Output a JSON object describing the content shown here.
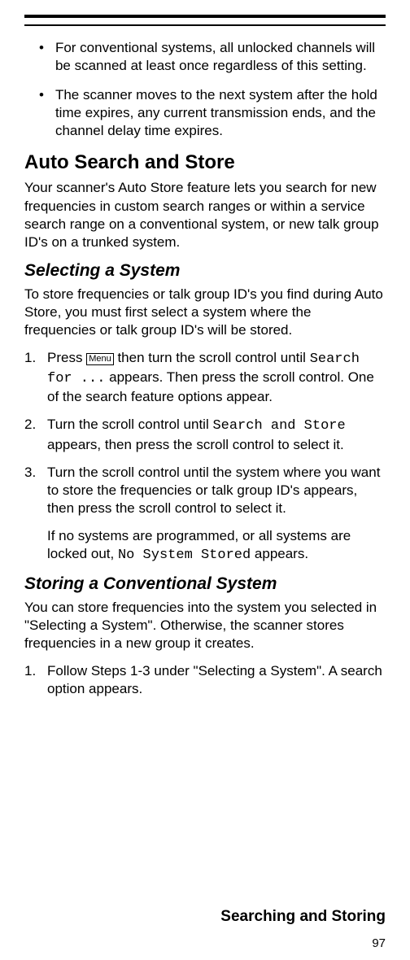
{
  "bullets": [
    "For conventional systems, all unlocked channels will be scanned at least once regardless of this setting.",
    "The scanner moves to the next system after the hold time expires, any current transmission ends, and the channel delay time expires."
  ],
  "section1": {
    "title": "Auto Search and Store",
    "intro": "Your scanner's Auto Store feature lets you search for new frequencies in custom search ranges or within a service search range on a conventional system, or new talk group ID's on a trunked system."
  },
  "sub1": {
    "title": "Selecting a System",
    "intro": "To store frequencies or talk group ID's you find during Auto Store, you must first select a system where the frequencies or talk group ID's will be stored.",
    "step1_a": "Press ",
    "menu_label": "Menu",
    "step1_b": " then turn the scroll control until ",
    "step1_mono": "Search for ...",
    "step1_c": " appears. Then press the scroll control. One of the search feature options appear.",
    "step2_a": "Turn the scroll control until ",
    "step2_mono": "Search and Store",
    "step2_b": " appears, then press the scroll control to select it.",
    "step3": "Turn the scroll control until the system where you want to store the frequencies or talk group ID's appears, then press the scroll control to select it.",
    "note_a": "If no systems are programmed, or all systems are locked out, ",
    "note_mono": "No System Stored",
    "note_b": " appears."
  },
  "sub2": {
    "title": "Storing a Conventional System",
    "intro": "You can store frequencies into the system you selected in \"Selecting a System\". Otherwise, the scanner stores\nfrequencies in a new group it creates.",
    "step1": "Follow Steps 1-3 under \"Selecting a System\". A search option appears."
  },
  "labels": {
    "n1": "1.",
    "n2": "2.",
    "n3": "3."
  },
  "footer": {
    "title": "Searching and Storing",
    "page": "97"
  }
}
